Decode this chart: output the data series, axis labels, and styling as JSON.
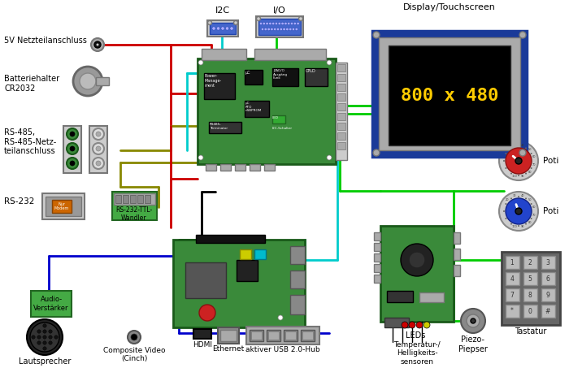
{
  "bg": "#ffffff",
  "figsize": [
    7.0,
    4.69
  ],
  "dpi": 100,
  "labels": {
    "5v": "5V Netzteilanschluss",
    "battery": "Batteriehalter\nCR2032",
    "rs485": "RS-485,\nRS-485-Netz-\nteilanschluss",
    "rs232": "RS-232",
    "rs232ttl": "RS-232-TTL-\nWandler",
    "audio": "Audio-\nVerstärker",
    "lautsprecher": "Lautsprecher",
    "composite": "Composite Video\n(Cinch)",
    "hdmi": "HDMI",
    "ethernet": "Ethernet",
    "usb": "aktiver USB 2.0-Hub",
    "temp": "Temperatur-/\nHelligkeits-\nsensoren",
    "leds": "LEDs",
    "piezo": "Piezo-\nPiepser",
    "tastatur": "Tastatur",
    "poti": "Poti",
    "i2c": "I2C",
    "io": "I/O",
    "display": "Display/Touchscreen",
    "resolution": "800 x 480"
  },
  "colors": {
    "pcb_green": "#3a8a3a",
    "pcb_dark": "#1a5a1a",
    "gray_light": "#cccccc",
    "gray_mid": "#aaaaaa",
    "gray_dark": "#777777",
    "blue_display": "#1a3a99",
    "black": "#000000",
    "yellow": "#ffcc00",
    "orange": "#cc6600",
    "white": "#ffffff",
    "chip_dark": "#222222",
    "connector_blue": "#4466cc",
    "red_wire": "#cc0000",
    "green_wire": "#00cc00",
    "blue_wire": "#0000cc",
    "cyan_wire": "#00cccc",
    "dark_yellow_wire": "#888800"
  }
}
